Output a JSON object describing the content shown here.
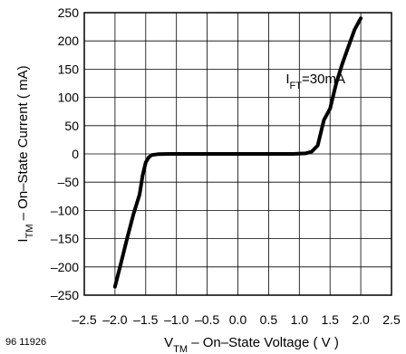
{
  "figure_id": "96 11926",
  "chart_data": {
    "type": "line",
    "title": "",
    "xlabel": {
      "main": "V",
      "sub": "TM",
      "rest": " – On–State Voltage ( V )"
    },
    "ylabel": {
      "main": "I",
      "sub": "TM",
      "rest": " – On–State Current ( mA)"
    },
    "xlim": [
      -2.5,
      2.5
    ],
    "ylim": [
      -250,
      250
    ],
    "x_ticks": [
      -2.5,
      -2.0,
      -1.5,
      -1.0,
      -0.5,
      0.0,
      0.5,
      1.0,
      1.5,
      2.0,
      2.5
    ],
    "x_tick_labels": [
      "–2.5",
      "–2.0",
      "–1.5",
      "–1.0",
      "–0.5",
      "0.0",
      "0.5",
      "1.0",
      "1.5",
      "2.0",
      "2.5"
    ],
    "y_ticks": [
      250,
      200,
      150,
      100,
      50,
      0,
      -50,
      -100,
      -150,
      -200,
      -250
    ],
    "y_tick_labels": [
      "250",
      "200",
      "150",
      "100",
      "50",
      "0",
      "–50",
      "–100",
      "–150",
      "–200",
      "–250"
    ],
    "grid": true,
    "line_color": "#000000",
    "annotation": {
      "main": "I",
      "sub": "FT",
      "rest": "=30mA",
      "x": 0.78,
      "y": 125
    },
    "series": [
      {
        "x": [
          -2.0,
          -1.9,
          -1.8,
          -1.7,
          -1.6,
          -1.55,
          -1.5,
          -1.45,
          -1.4,
          -1.3,
          -1.1,
          -0.5,
          0.0,
          0.5,
          0.9,
          1.1,
          1.2,
          1.3,
          1.4,
          1.5,
          1.6,
          1.7,
          1.8,
          1.9,
          2.0
        ],
        "y": [
          -235,
          -192,
          -148,
          -107,
          -72,
          -38,
          -15,
          -6,
          -2,
          -0.5,
          0,
          0,
          0,
          0,
          0,
          1,
          4,
          15,
          60,
          80,
          125,
          160,
          190,
          220,
          240
        ]
      }
    ]
  }
}
